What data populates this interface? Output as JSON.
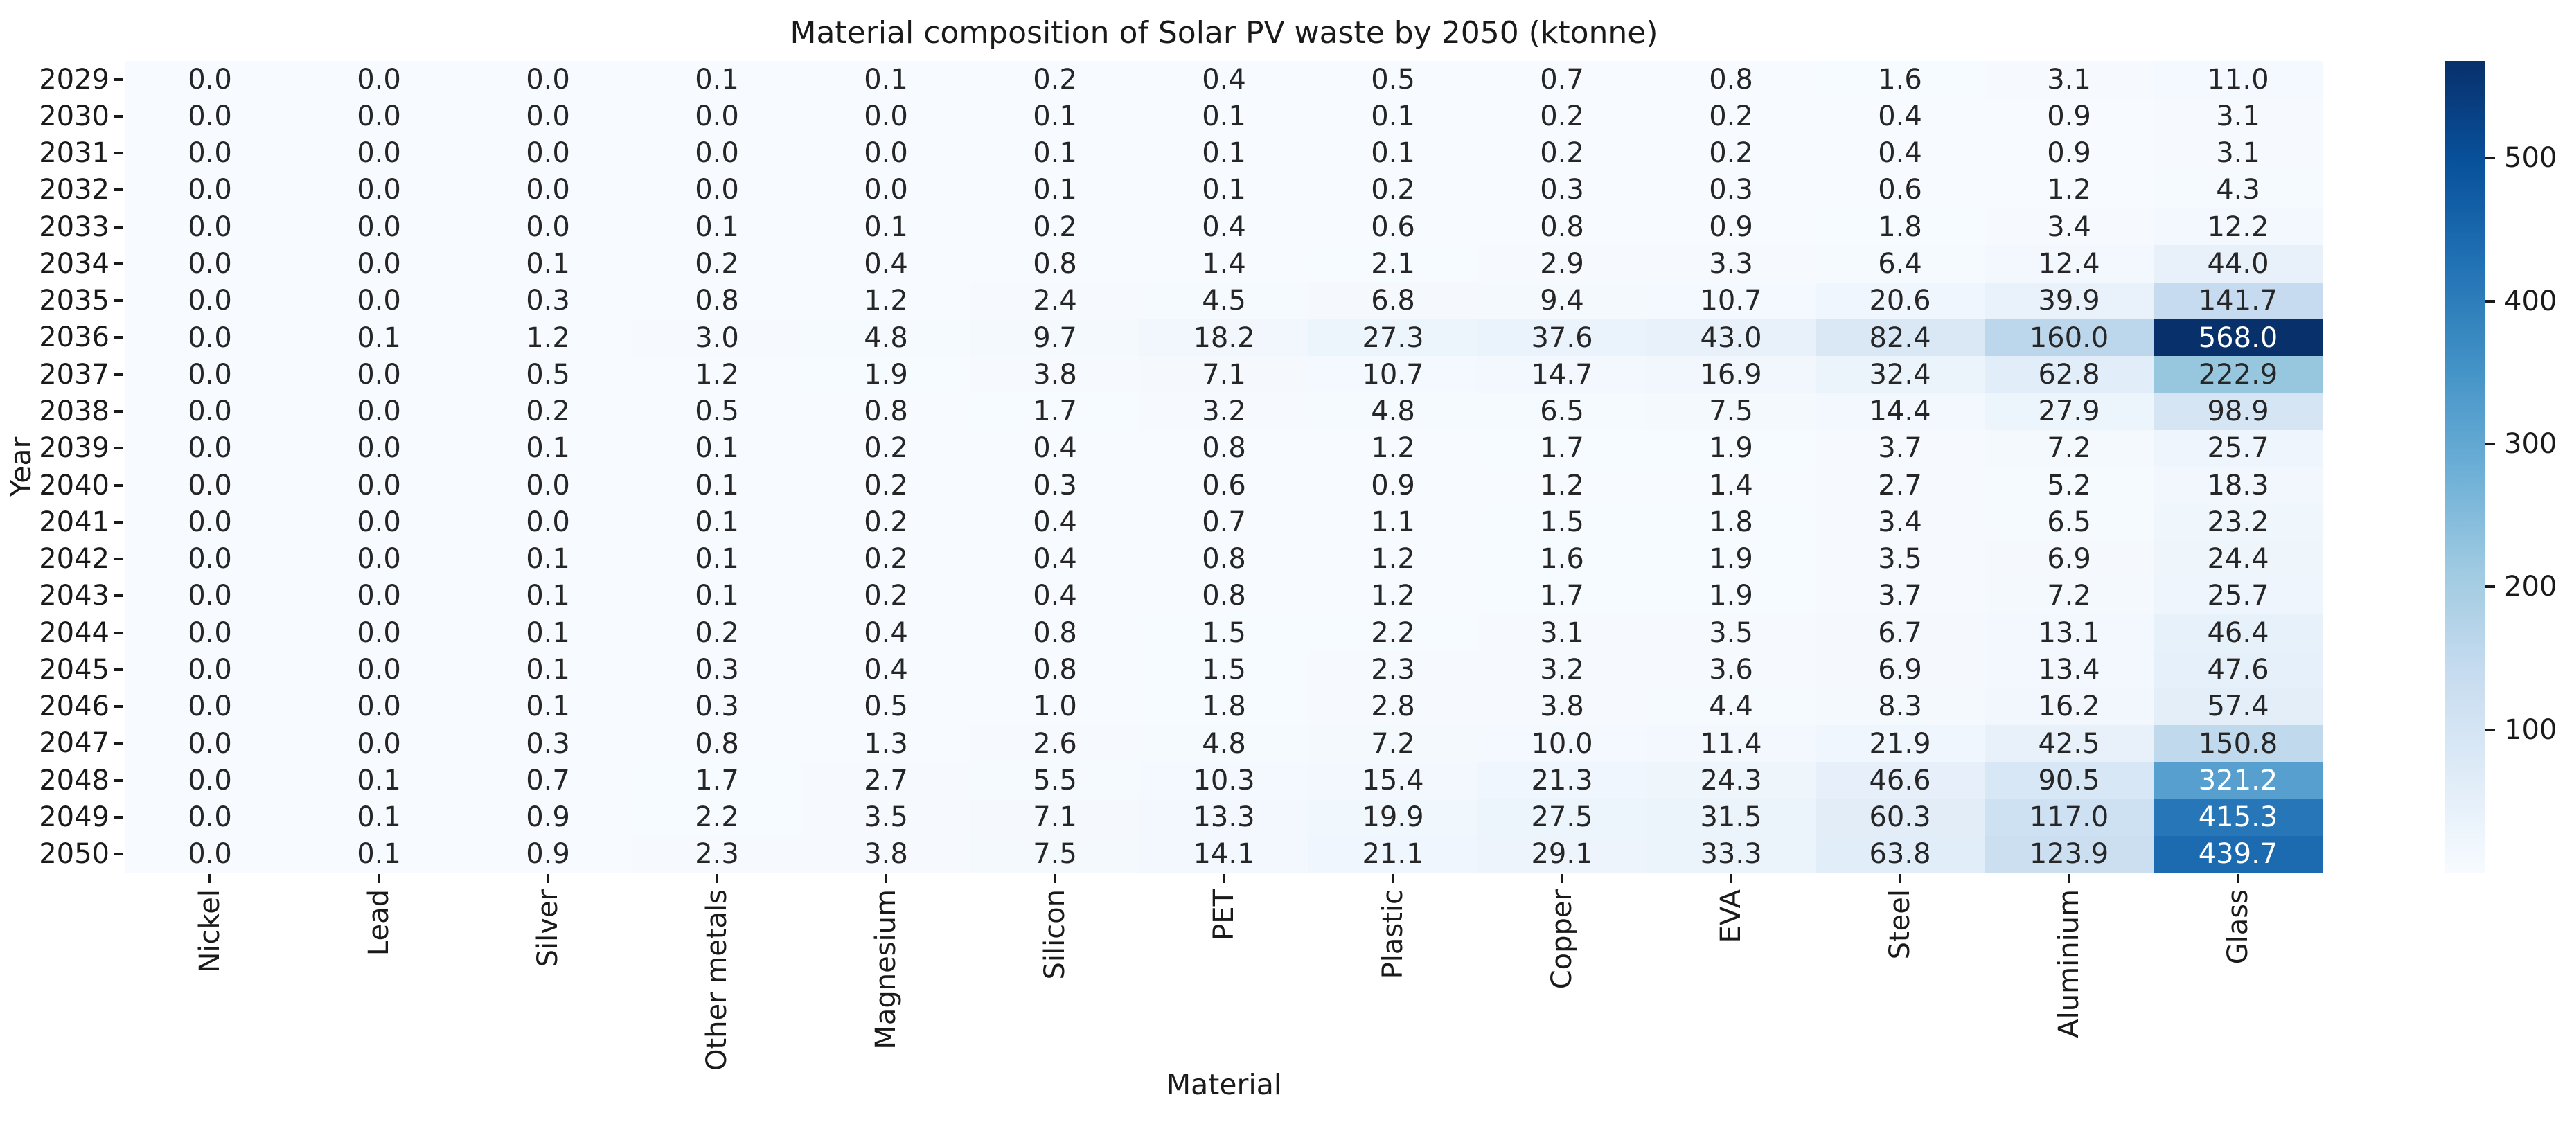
{
  "title": "Material composition of Solar PV waste by 2050 (ktonne)",
  "chart_data": {
    "type": "heatmap",
    "title": "Material composition of Solar PV waste by 2050 (ktonne)",
    "xlabel": "Material",
    "ylabel": "Year",
    "x_categories": [
      "Nickel",
      "Lead",
      "Silver",
      "Other metals",
      "Magnesium",
      "Silicon",
      "PET",
      "Plastic",
      "Copper",
      "EVA",
      "Steel",
      "Aluminium",
      "Glass"
    ],
    "y_categories": [
      "2029",
      "2030",
      "2031",
      "2032",
      "2033",
      "2034",
      "2035",
      "2036",
      "2037",
      "2038",
      "2039",
      "2040",
      "2041",
      "2042",
      "2043",
      "2044",
      "2045",
      "2046",
      "2047",
      "2048",
      "2049",
      "2050"
    ],
    "values": [
      [
        0.0,
        0.0,
        0.0,
        0.1,
        0.1,
        0.2,
        0.4,
        0.5,
        0.7,
        0.8,
        1.6,
        3.1,
        11.0
      ],
      [
        0.0,
        0.0,
        0.0,
        0.0,
        0.0,
        0.1,
        0.1,
        0.1,
        0.2,
        0.2,
        0.4,
        0.9,
        3.1
      ],
      [
        0.0,
        0.0,
        0.0,
        0.0,
        0.0,
        0.1,
        0.1,
        0.1,
        0.2,
        0.2,
        0.4,
        0.9,
        3.1
      ],
      [
        0.0,
        0.0,
        0.0,
        0.0,
        0.0,
        0.1,
        0.1,
        0.2,
        0.3,
        0.3,
        0.6,
        1.2,
        4.3
      ],
      [
        0.0,
        0.0,
        0.0,
        0.1,
        0.1,
        0.2,
        0.4,
        0.6,
        0.8,
        0.9,
        1.8,
        3.4,
        12.2
      ],
      [
        0.0,
        0.0,
        0.1,
        0.2,
        0.4,
        0.8,
        1.4,
        2.1,
        2.9,
        3.3,
        6.4,
        12.4,
        44.0
      ],
      [
        0.0,
        0.0,
        0.3,
        0.8,
        1.2,
        2.4,
        4.5,
        6.8,
        9.4,
        10.7,
        20.6,
        39.9,
        141.7
      ],
      [
        0.0,
        0.1,
        1.2,
        3.0,
        4.8,
        9.7,
        18.2,
        27.3,
        37.6,
        43.0,
        82.4,
        160.0,
        568.0
      ],
      [
        0.0,
        0.0,
        0.5,
        1.2,
        1.9,
        3.8,
        7.1,
        10.7,
        14.7,
        16.9,
        32.4,
        62.8,
        222.9
      ],
      [
        0.0,
        0.0,
        0.2,
        0.5,
        0.8,
        1.7,
        3.2,
        4.8,
        6.5,
        7.5,
        14.4,
        27.9,
        98.9
      ],
      [
        0.0,
        0.0,
        0.1,
        0.1,
        0.2,
        0.4,
        0.8,
        1.2,
        1.7,
        1.9,
        3.7,
        7.2,
        25.7
      ],
      [
        0.0,
        0.0,
        0.0,
        0.1,
        0.2,
        0.3,
        0.6,
        0.9,
        1.2,
        1.4,
        2.7,
        5.2,
        18.3
      ],
      [
        0.0,
        0.0,
        0.0,
        0.1,
        0.2,
        0.4,
        0.7,
        1.1,
        1.5,
        1.8,
        3.4,
        6.5,
        23.2
      ],
      [
        0.0,
        0.0,
        0.1,
        0.1,
        0.2,
        0.4,
        0.8,
        1.2,
        1.6,
        1.9,
        3.5,
        6.9,
        24.4
      ],
      [
        0.0,
        0.0,
        0.1,
        0.1,
        0.2,
        0.4,
        0.8,
        1.2,
        1.7,
        1.9,
        3.7,
        7.2,
        25.7
      ],
      [
        0.0,
        0.0,
        0.1,
        0.2,
        0.4,
        0.8,
        1.5,
        2.2,
        3.1,
        3.5,
        6.7,
        13.1,
        46.4
      ],
      [
        0.0,
        0.0,
        0.1,
        0.3,
        0.4,
        0.8,
        1.5,
        2.3,
        3.2,
        3.6,
        6.9,
        13.4,
        47.6
      ],
      [
        0.0,
        0.0,
        0.1,
        0.3,
        0.5,
        1.0,
        1.8,
        2.8,
        3.8,
        4.4,
        8.3,
        16.2,
        57.4
      ],
      [
        0.0,
        0.0,
        0.3,
        0.8,
        1.3,
        2.6,
        4.8,
        7.2,
        10.0,
        11.4,
        21.9,
        42.5,
        150.8
      ],
      [
        0.0,
        0.1,
        0.7,
        1.7,
        2.7,
        5.5,
        10.3,
        15.4,
        21.3,
        24.3,
        46.6,
        90.5,
        321.2
      ],
      [
        0.0,
        0.1,
        0.9,
        2.2,
        3.5,
        7.1,
        13.3,
        19.9,
        27.5,
        31.5,
        60.3,
        117.0,
        415.3
      ],
      [
        0.0,
        0.1,
        0.9,
        2.3,
        3.8,
        7.5,
        14.1,
        21.1,
        29.1,
        33.3,
        63.8,
        123.9,
        439.7
      ]
    ],
    "value_format": ".1f",
    "vmin": 0,
    "vmax": 568,
    "colormap": "Blues",
    "colormap_anchors": [
      "#f7fbff",
      "#deebf7",
      "#c6dbef",
      "#9ecae1",
      "#6baed6",
      "#4292c6",
      "#2171b5",
      "#08519c",
      "#08306b"
    ],
    "colorbar_ticks": [
      100,
      200,
      300,
      400,
      500
    ],
    "legend_position": "right-colorbar",
    "grid": false,
    "annotation_dark_color": "#262626",
    "annotation_light_color": "#ffffff"
  }
}
